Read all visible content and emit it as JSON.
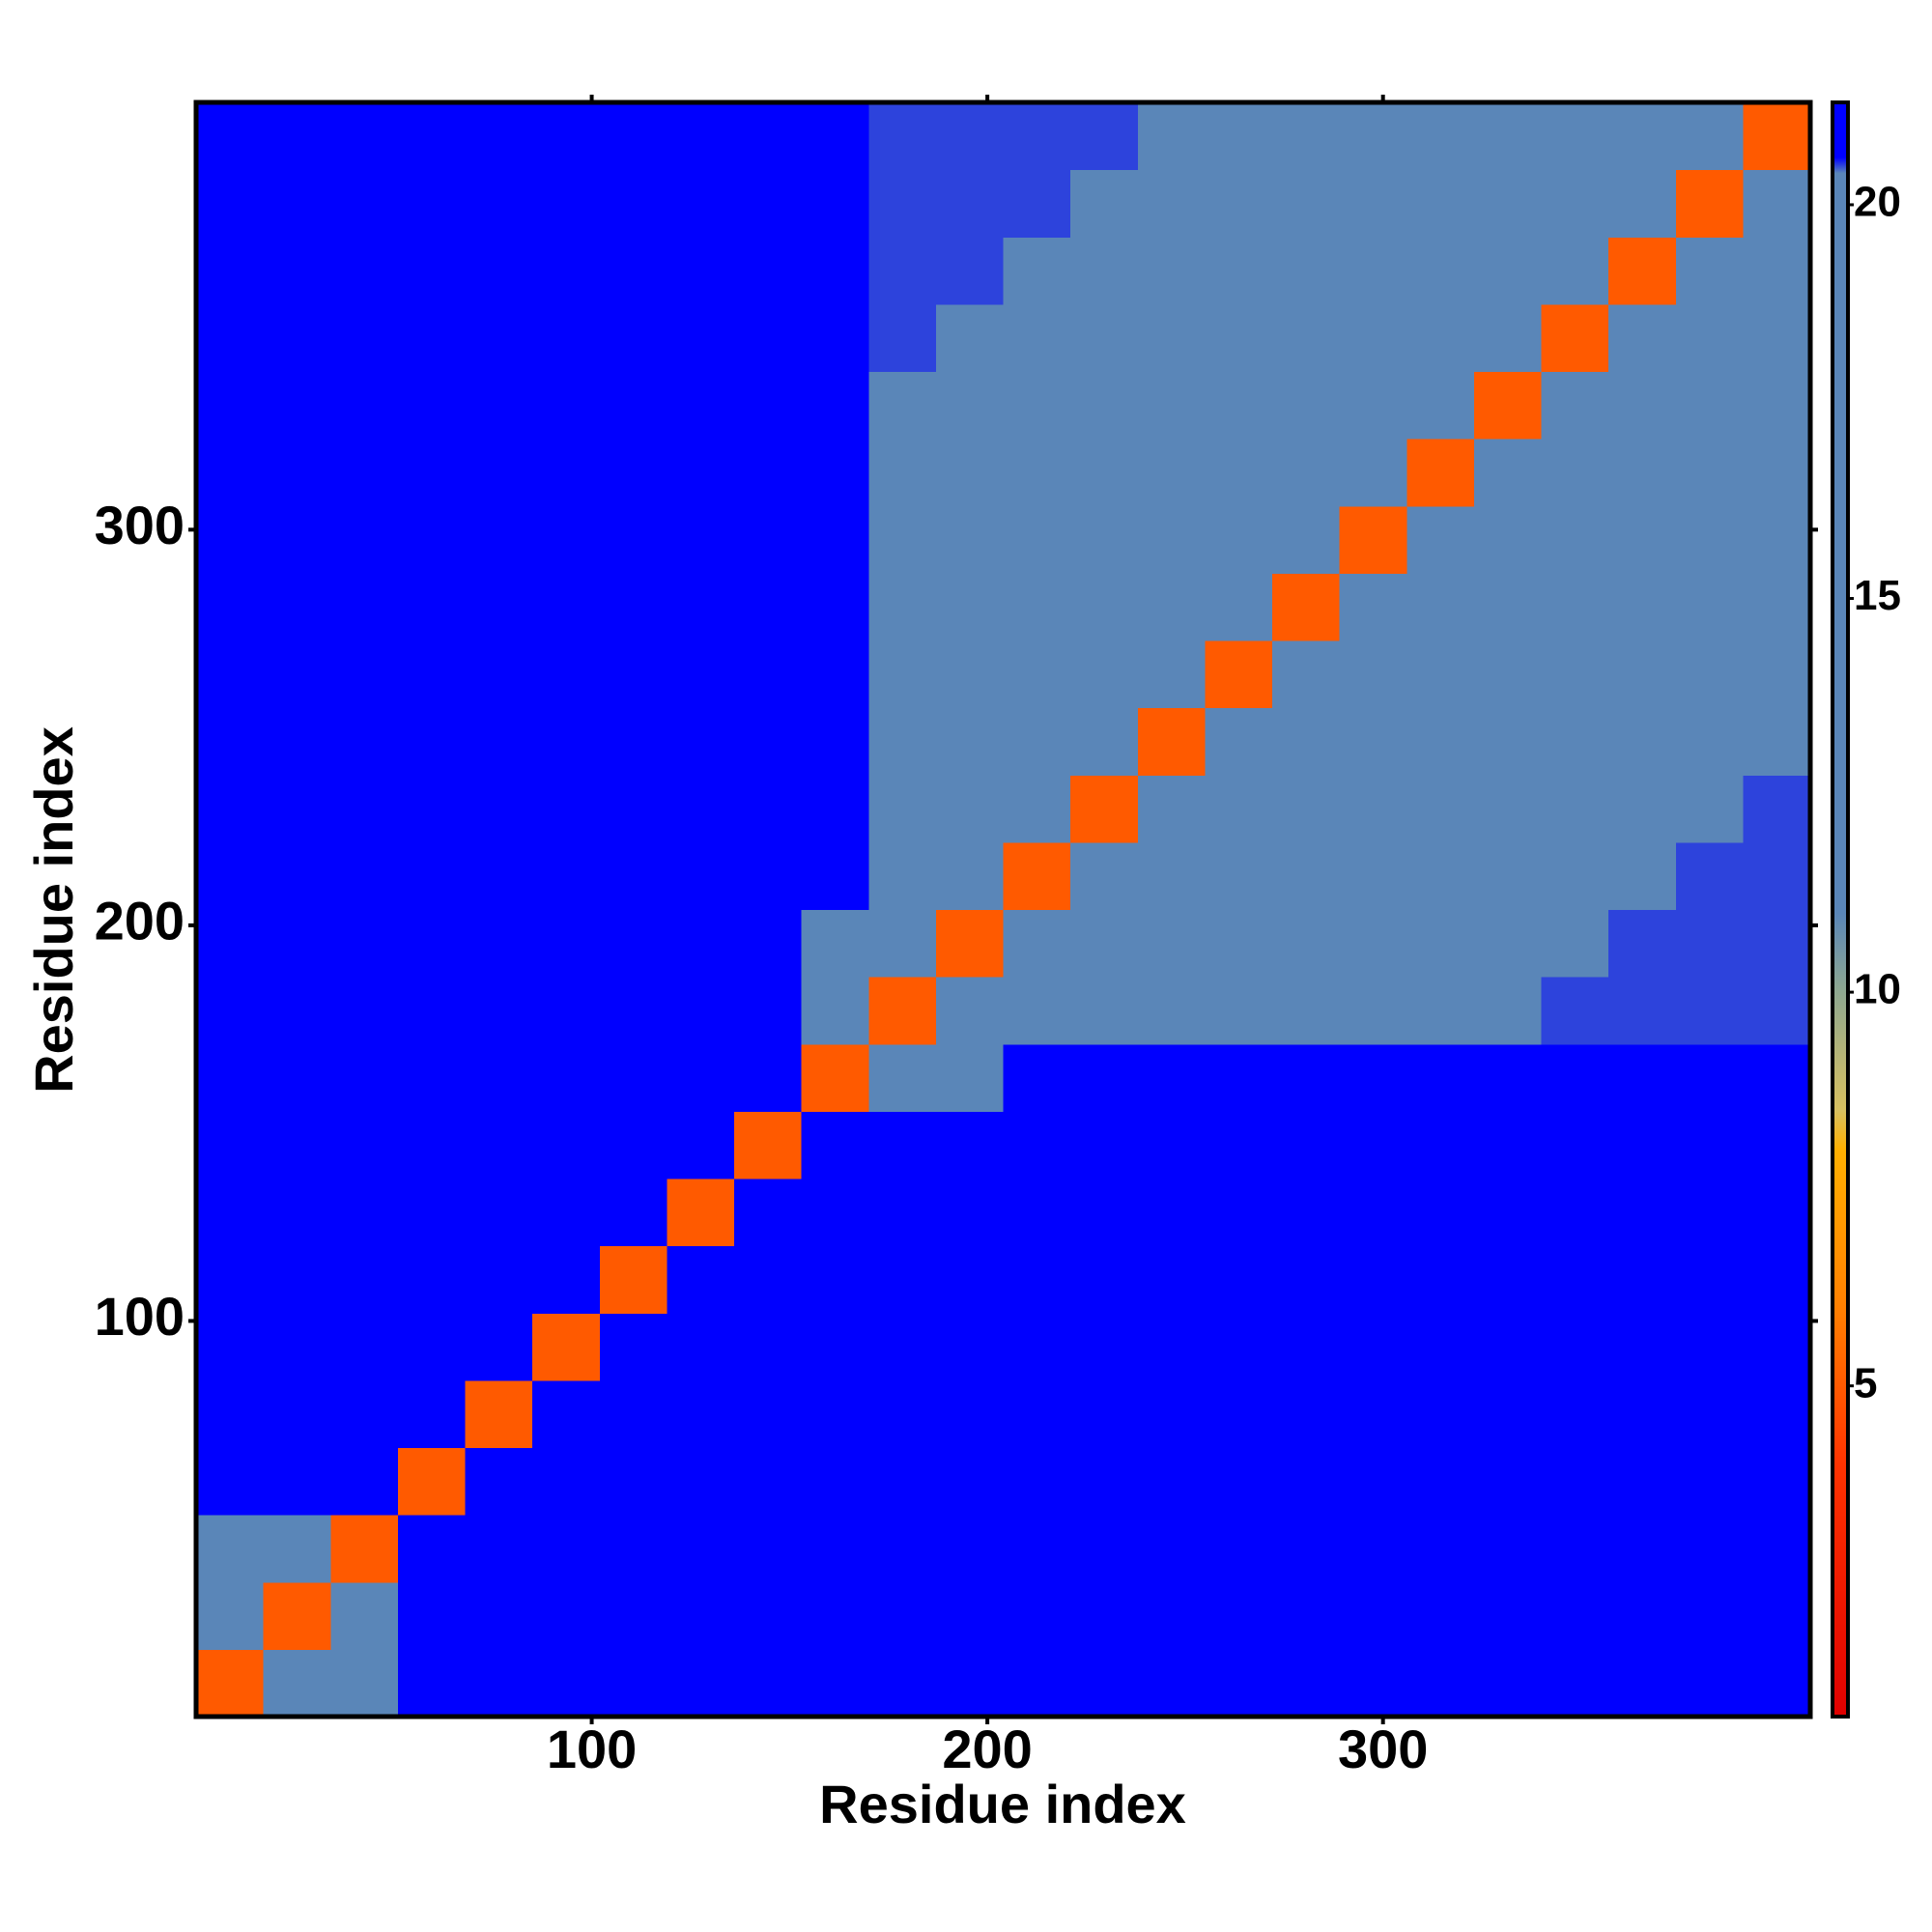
{
  "chart_data": {
    "type": "heatmap",
    "xlabel": "Residue index",
    "ylabel": "Residue index",
    "xlim": [
      0,
      408
    ],
    "ylim": [
      0,
      408
    ],
    "xticks": [
      100,
      200,
      300
    ],
    "yticks": [
      100,
      200,
      300
    ],
    "bins": [
      0,
      17,
      34,
      51,
      68,
      85,
      102,
      119,
      136,
      153,
      170,
      187,
      204,
      221,
      238,
      255,
      272,
      289,
      306,
      323,
      340,
      357,
      374,
      391,
      408
    ],
    "z": [
      [
        5,
        14,
        18,
        21,
        21,
        21,
        21,
        21,
        21,
        21,
        21,
        21,
        21,
        21,
        21,
        21,
        21,
        21,
        21,
        21,
        21,
        21,
        21,
        21
      ],
      [
        14,
        5,
        14,
        21,
        21,
        21,
        21,
        21,
        21,
        21,
        21,
        21,
        21,
        21,
        21,
        21,
        21,
        21,
        21,
        21,
        21,
        21,
        21,
        21
      ],
      [
        18,
        14,
        5,
        20.8,
        21,
        21,
        21,
        21,
        21,
        21,
        21,
        21,
        21,
        21,
        21,
        21,
        21,
        21,
        21,
        21,
        21,
        21,
        21,
        21
      ],
      [
        21,
        21,
        20.8,
        5,
        20.8,
        21,
        21,
        21,
        21,
        21,
        21,
        21,
        21,
        21,
        21,
        21,
        21,
        21,
        21,
        21,
        21,
        21,
        21,
        21
      ],
      [
        21,
        21,
        21,
        20.8,
        5,
        20.8,
        21,
        21,
        21,
        21,
        21,
        21,
        21,
        21,
        21,
        21,
        21,
        21,
        21,
        21,
        21,
        21,
        21,
        21
      ],
      [
        21,
        21,
        21,
        21,
        20.8,
        5,
        20.8,
        21,
        21,
        21,
        21,
        21,
        21,
        21,
        21,
        21,
        21,
        21,
        21,
        21,
        21,
        21,
        21,
        21
      ],
      [
        21,
        21,
        21,
        21,
        21,
        20.8,
        5,
        20.8,
        21,
        21,
        21,
        21,
        21,
        21,
        21,
        21,
        21,
        21,
        21,
        21,
        21,
        21,
        21,
        21
      ],
      [
        21,
        21,
        21,
        21,
        21,
        21,
        20.8,
        5,
        20.8,
        21,
        21,
        21,
        21,
        21,
        21,
        21,
        21,
        21,
        21,
        21,
        21,
        21,
        21,
        21
      ],
      [
        21,
        21,
        21,
        21,
        21,
        21,
        21,
        20.8,
        5,
        20.8,
        21,
        21,
        21,
        21,
        21,
        21,
        21,
        21,
        21,
        21,
        21,
        21,
        21,
        21
      ],
      [
        21,
        21,
        21,
        21,
        21,
        21,
        21,
        21,
        20.8,
        5,
        17,
        20,
        21,
        21,
        21,
        21,
        21,
        21,
        21,
        21,
        21,
        21,
        21,
        21
      ],
      [
        21,
        21,
        21,
        21,
        21,
        21,
        21,
        21,
        21,
        17,
        5,
        12,
        15,
        17,
        17,
        17,
        18.5,
        18.5,
        18.5,
        19.5,
        20.5,
        20.5,
        20.5,
        20.5
      ],
      [
        21,
        21,
        21,
        21,
        21,
        21,
        21,
        21,
        21,
        20,
        12,
        5,
        12,
        15,
        17,
        17,
        17,
        18.5,
        18.5,
        18.5,
        19.5,
        20.5,
        20.5,
        20.5
      ],
      [
        21,
        21,
        21,
        21,
        21,
        21,
        21,
        21,
        21,
        21,
        15,
        12,
        5,
        12,
        15,
        17,
        17,
        17,
        18.5,
        18.5,
        18.5,
        19.5,
        20.5,
        20.5
      ],
      [
        21,
        21,
        21,
        21,
        21,
        21,
        21,
        21,
        21,
        21,
        17,
        15,
        12,
        5,
        12,
        15,
        17,
        17,
        17,
        18.5,
        18.5,
        18.5,
        19.5,
        20.5
      ],
      [
        21,
        21,
        21,
        21,
        21,
        21,
        21,
        21,
        21,
        21,
        17,
        17,
        15,
        12,
        5,
        12,
        15,
        17,
        17,
        17,
        18.5,
        18.5,
        18.5,
        19.5
      ],
      [
        21,
        21,
        21,
        21,
        21,
        21,
        21,
        21,
        21,
        21,
        17,
        17,
        17,
        15,
        12,
        5,
        12,
        15,
        17,
        17,
        17,
        18.5,
        18.5,
        18.5
      ],
      [
        21,
        21,
        21,
        21,
        21,
        21,
        21,
        21,
        21,
        21,
        18.5,
        17,
        17,
        17,
        15,
        12,
        5,
        12,
        15,
        17,
        17,
        17,
        18.5,
        18.5
      ],
      [
        21,
        21,
        21,
        21,
        21,
        21,
        21,
        21,
        21,
        21,
        18.5,
        18.5,
        17,
        17,
        17,
        15,
        12,
        5,
        12,
        15,
        17,
        17,
        17,
        18.5
      ],
      [
        21,
        21,
        21,
        21,
        21,
        21,
        21,
        21,
        21,
        21,
        18.5,
        18.5,
        18.5,
        17,
        17,
        17,
        15,
        12,
        5,
        12,
        15,
        17,
        17,
        17
      ],
      [
        21,
        21,
        21,
        21,
        21,
        21,
        21,
        21,
        21,
        21,
        19.5,
        18.5,
        18.5,
        18.5,
        17,
        17,
        17,
        15,
        12,
        5,
        12,
        15,
        17,
        17
      ],
      [
        21,
        21,
        21,
        21,
        21,
        21,
        21,
        21,
        21,
        21,
        20.5,
        19.5,
        18.5,
        18.5,
        18.5,
        17,
        17,
        17,
        15,
        12,
        5,
        12,
        15,
        17
      ],
      [
        21,
        21,
        21,
        21,
        21,
        21,
        21,
        21,
        21,
        21,
        20.5,
        20.5,
        19.5,
        18.5,
        18.5,
        18.5,
        17,
        17,
        17,
        15,
        12,
        5,
        12,
        15
      ],
      [
        21,
        21,
        21,
        21,
        21,
        21,
        21,
        21,
        21,
        21,
        20.5,
        20.5,
        20.5,
        19.5,
        18.5,
        18.5,
        18.5,
        17,
        17,
        17,
        15,
        12,
        5,
        12
      ],
      [
        21,
        21,
        21,
        21,
        21,
        21,
        21,
        21,
        21,
        21,
        20.5,
        20.5,
        20.5,
        20.5,
        19.5,
        18.5,
        18.5,
        18.5,
        17,
        17,
        17,
        15,
        12,
        5
      ]
    ],
    "colorbar": {
      "lim": [
        0.8,
        21.3
      ],
      "ticks": [
        5,
        10,
        15,
        20
      ],
      "colormap": [
        {
          "value": 0.8,
          "color": "#e00000"
        },
        {
          "value": 4,
          "color": "#ff3300"
        },
        {
          "value": 6,
          "color": "#ff8000"
        },
        {
          "value": 8,
          "color": "#ffb000"
        },
        {
          "value": 8.5,
          "color": "#d8c060"
        },
        {
          "value": 10,
          "color": "#8fa890"
        },
        {
          "value": 11,
          "color": "#5a86b8"
        },
        {
          "value": 20.4,
          "color": "#5a86b8"
        },
        {
          "value": 20.6,
          "color": "#0000ff"
        },
        {
          "value": 21.3,
          "color": "#0000ff"
        }
      ]
    }
  }
}
